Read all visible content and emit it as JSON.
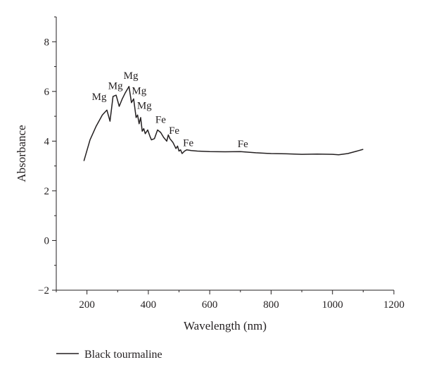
{
  "chart_data": {
    "type": "line",
    "xlabel": "Wavelength (nm)",
    "ylabel": "Absorbance",
    "xlim": [
      100,
      1200
    ],
    "ylim": [
      -2,
      9
    ],
    "xticks": [
      200,
      400,
      600,
      800,
      1000,
      1200
    ],
    "xtick_labels": [
      "200",
      "400",
      "600",
      "800",
      "1000",
      "1200"
    ],
    "yticks": [
      -2,
      0,
      2,
      4,
      6,
      8
    ],
    "ytick_labels": [
      "−2",
      "0",
      "2",
      "4",
      "6",
      "8"
    ],
    "grid": false,
    "legend_position": "bottom-left",
    "colors": {
      "line": "#231f20",
      "axis": "#231f20"
    },
    "series": [
      {
        "name": "Black tourmaline",
        "x": [
          190,
          210,
          230,
          250,
          265,
          275,
          285,
          295,
          305,
          315,
          325,
          337,
          345,
          352,
          360,
          365,
          370,
          375,
          380,
          385,
          390,
          398,
          405,
          410,
          420,
          430,
          440,
          450,
          460,
          465,
          470,
          480,
          490,
          495,
          500,
          505,
          510,
          518,
          525,
          540,
          560,
          600,
          650,
          700,
          750,
          800,
          850,
          900,
          950,
          1000,
          1020,
          1050,
          1080,
          1100
        ],
        "y": [
          3.2,
          4.05,
          4.6,
          5.05,
          5.25,
          4.8,
          5.8,
          5.85,
          5.4,
          5.7,
          5.95,
          6.2,
          5.55,
          5.7,
          4.95,
          5.05,
          4.7,
          4.95,
          4.4,
          4.5,
          4.3,
          4.45,
          4.2,
          4.05,
          4.1,
          4.45,
          4.35,
          4.15,
          4.0,
          4.25,
          4.1,
          3.95,
          3.7,
          3.8,
          3.6,
          3.65,
          3.5,
          3.6,
          3.65,
          3.62,
          3.6,
          3.58,
          3.57,
          3.58,
          3.53,
          3.5,
          3.49,
          3.47,
          3.48,
          3.47,
          3.45,
          3.5,
          3.6,
          3.67
        ]
      }
    ],
    "annotations": [
      {
        "text": "Mg",
        "x": 240,
        "y": 5.65
      },
      {
        "text": "Mg",
        "x": 293,
        "y": 6.1
      },
      {
        "text": "Mg",
        "x": 343,
        "y": 6.5
      },
      {
        "text": "Mg",
        "x": 370,
        "y": 5.9
      },
      {
        "text": "Mg",
        "x": 387,
        "y": 5.3
      },
      {
        "text": "Fe",
        "x": 440,
        "y": 4.73
      },
      {
        "text": "Fe",
        "x": 484,
        "y": 4.3
      },
      {
        "text": "Fe",
        "x": 530,
        "y": 3.8
      },
      {
        "text": "Fe",
        "x": 708,
        "y": 3.75
      }
    ]
  }
}
